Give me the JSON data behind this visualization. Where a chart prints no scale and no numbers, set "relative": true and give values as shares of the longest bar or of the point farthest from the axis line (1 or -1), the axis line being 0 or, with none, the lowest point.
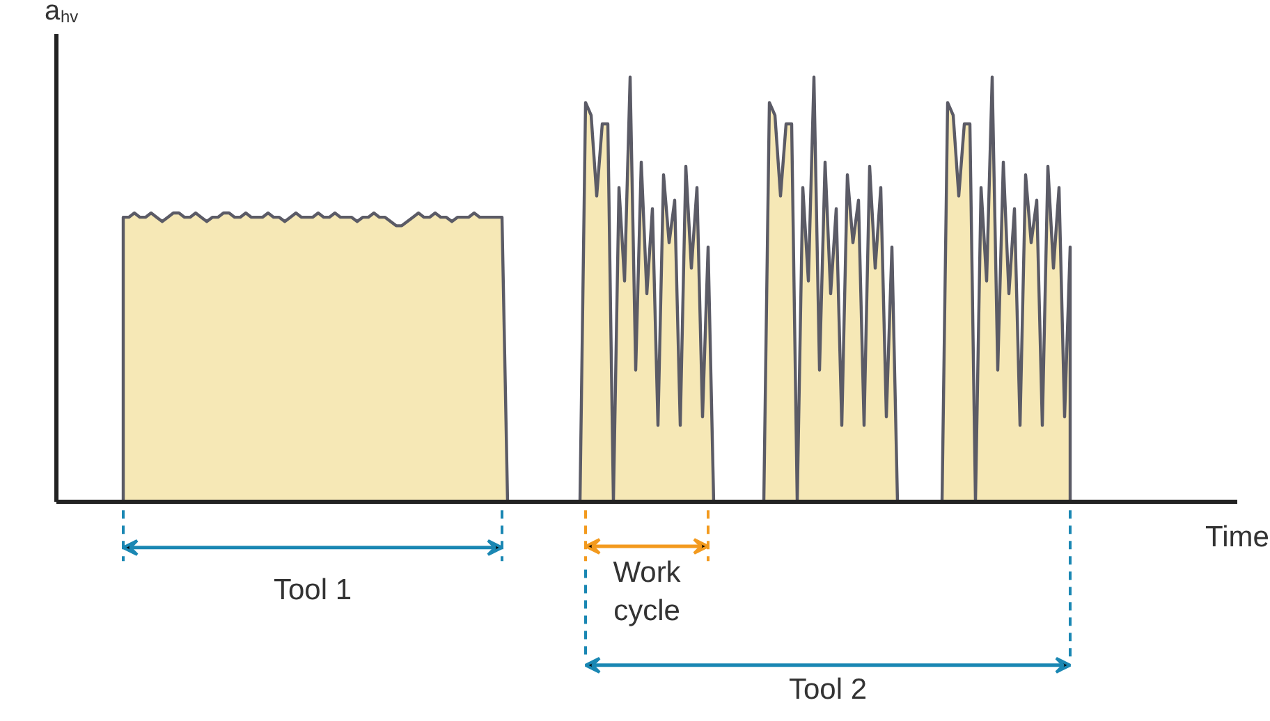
{
  "chart_data": {
    "type": "area",
    "relative": true,
    "color": "#f6e8b6",
    "ylabel": "a$_{hv}$",
    "xlabel": "Time",
    "annotations": [
      "Tool 1",
      "Work\ncycle",
      "Tool 2"
    ],
    "categories": [
      null,
      null,
      null,
      null,
      null,
      null,
      null,
      null,
      null,
      null,
      null,
      null,
      null,
      null,
      null,
      null,
      null,
      null,
      null,
      null,
      null,
      null,
      null,
      null,
      null,
      null,
      null,
      null,
      null,
      null,
      null,
      null,
      null,
      null,
      null,
      null,
      null,
      null,
      null,
      null,
      null,
      null,
      null,
      null,
      null,
      null,
      null,
      null,
      null,
      null,
      null,
      null,
      null,
      null,
      null,
      null,
      null,
      null,
      null,
      null,
      null,
      null,
      null,
      null,
      null,
      null,
      null,
      null,
      null,
      null,
      null,
      null,
      null,
      null,
      null,
      null,
      null,
      null,
      null,
      null,
      null,
      null,
      null,
      null,
      null,
      null,
      null,
      null,
      null,
      null,
      null,
      null,
      null,
      null,
      null,
      null,
      null,
      null,
      null,
      null,
      null,
      null,
      null,
      null,
      null,
      null,
      null,
      null,
      null,
      null,
      null,
      null,
      null,
      null,
      null,
      null,
      null,
      null,
      null,
      null,
      null,
      null,
      null,
      null,
      null,
      null,
      null,
      null,
      null,
      null,
      null,
      null,
      null,
      null,
      null,
      null,
      null,
      null,
      null,
      null,
      null,
      null,
      null,
      null,
      null,
      null,
      null,
      null,
      null,
      null,
      null,
      null,
      null,
      null,
      null,
      null,
      null,
      null,
      null,
      null,
      null,
      null,
      null,
      null,
      null,
      null,
      null,
      null,
      null,
      null,
      null
    ],
    "values": [
      0.67,
      0.67,
      0.68,
      0.67,
      0.67,
      0.68,
      0.67,
      0.66,
      0.67,
      0.68,
      0.68,
      0.67,
      0.67,
      0.68,
      0.67,
      0.66,
      0.67,
      0.67,
      0.68,
      0.68,
      0.67,
      0.67,
      0.68,
      0.67,
      0.67,
      0.67,
      0.68,
      0.67,
      0.67,
      0.66,
      0.67,
      0.68,
      0.67,
      0.67,
      0.67,
      0.68,
      0.67,
      0.67,
      0.68,
      0.67,
      0.67,
      0.67,
      0.66,
      0.67,
      0.67,
      0.68,
      0.67,
      0.67,
      0.66,
      0.65,
      0.65,
      0.66,
      0.67,
      0.68,
      0.67,
      0.67,
      0.68,
      0.67,
      0.67,
      0.66,
      0.67,
      0.67,
      0.67,
      0.68,
      0.67,
      0.67,
      0.67,
      0.67,
      0.67,
      0,
      0,
      0,
      0,
      0,
      0,
      0,
      0,
      0,
      0,
      0,
      0,
      0,
      0,
      0.94,
      0.91,
      0.72,
      0.89,
      0.89,
      0,
      0.74,
      0.52,
      1.0,
      0.31,
      0.8,
      0.49,
      0.69,
      0.18,
      0.77,
      0.61,
      0.71,
      0.18,
      0.79,
      0.55,
      0.74,
      0.2,
      0.6,
      0,
      0,
      0,
      0,
      0,
      0,
      0,
      0,
      0,
      0,
      0.94,
      0.91,
      0.72,
      0.89,
      0.89,
      0,
      0.74,
      0.52,
      1.0,
      0.31,
      0.8,
      0.49,
      0.69,
      0.18,
      0.77,
      0.61,
      0.71,
      0.18,
      0.79,
      0.55,
      0.74,
      0.2,
      0.6,
      0,
      0,
      0,
      0,
      0,
      0,
      0,
      0,
      0,
      0.94,
      0.91,
      0.72,
      0.89,
      0.89,
      0,
      0.74,
      0.52,
      1.0,
      0.31,
      0.8,
      0.49,
      0.69,
      0.18,
      0.77,
      0.61,
      0.71,
      0.18,
      0.79,
      0.55,
      0.74,
      0.2,
      0.6
    ]
  }
}
